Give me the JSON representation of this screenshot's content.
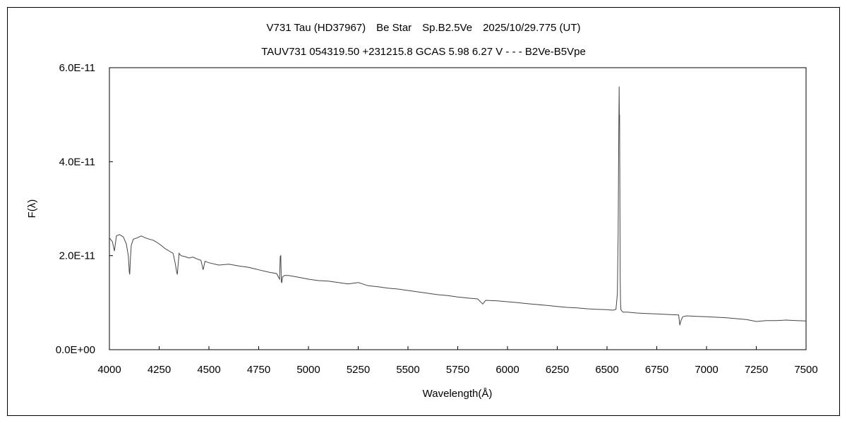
{
  "chart_data": {
    "type": "line",
    "title": "V731 Tau (HD37967)　Be Star　Sp.B2.5Ve　2025/10/29.775 (UT)",
    "subtitle": "TAUV731 054319.50 +231215.8 GCAS 5.98 6.27 V - - - B2Ve-B5Vpe",
    "xlabel": "Wavelength(Å)",
    "ylabel": "F(λ)",
    "xlim": [
      4000,
      7500
    ],
    "ylim": [
      0,
      6e-11
    ],
    "x_ticks": [
      4000,
      4250,
      4500,
      4750,
      5000,
      5250,
      5500,
      5750,
      6000,
      6250,
      6500,
      6750,
      7000,
      7250,
      7500
    ],
    "x_tick_labels": [
      "4000",
      "4250",
      "4500",
      "4750",
      "5000",
      "5250",
      "5500",
      "5750",
      "6000",
      "6250",
      "6500",
      "6750",
      "7000",
      "7250",
      "7500"
    ],
    "y_ticks": [
      0,
      2e-11,
      4e-11,
      6e-11
    ],
    "y_tick_labels": [
      "0.0E+00",
      "2.0E-11",
      "4.0E-11",
      "6.0E-11"
    ],
    "grid": false,
    "series": [
      {
        "x": [
          4000,
          4015,
          4025,
          4035,
          4050,
          4070,
          4085,
          4095,
          4100,
          4102,
          4105,
          4110,
          4120,
          4140,
          4160,
          4180,
          4200,
          4220,
          4240,
          4260,
          4280,
          4300,
          4320,
          4330,
          4338,
          4341,
          4345,
          4350,
          4360,
          4380,
          4400,
          4420,
          4440,
          4460,
          4471,
          4480,
          4500,
          4550,
          4600,
          4650,
          4700,
          4750,
          4800,
          4840,
          4855,
          4858,
          4861,
          4864,
          4866,
          4870,
          4880,
          4900,
          4950,
          5000,
          5050,
          5100,
          5150,
          5200,
          5250,
          5300,
          5350,
          5400,
          5450,
          5500,
          5550,
          5600,
          5650,
          5700,
          5750,
          5800,
          5850,
          5876,
          5890,
          5950,
          6000,
          6050,
          6100,
          6150,
          6200,
          6250,
          6300,
          6350,
          6400,
          6450,
          6500,
          6530,
          6545,
          6552,
          6556,
          6559,
          6561,
          6562,
          6563,
          6564,
          6565,
          6566,
          6568,
          6570,
          6575,
          6580,
          6600,
          6650,
          6700,
          6750,
          6800,
          6860,
          6866,
          6870,
          6880,
          6900,
          6950,
          7000,
          7050,
          7100,
          7150,
          7200,
          7250,
          7300,
          7350,
          7400,
          7450,
          7500
        ],
        "y": [
          2.38e-11,
          2.3e-11,
          2.1e-11,
          2.42e-11,
          2.45e-11,
          2.4e-11,
          2.25e-11,
          2e-11,
          1.65e-11,
          1.6e-11,
          1.9e-11,
          2.22e-11,
          2.35e-11,
          2.38e-11,
          2.42e-11,
          2.38e-11,
          2.35e-11,
          2.33e-11,
          2.28e-11,
          2.22e-11,
          2.15e-11,
          2.1e-11,
          2.05e-11,
          1.85e-11,
          1.65e-11,
          1.6e-11,
          1.8e-11,
          2.05e-11,
          2e-11,
          1.98e-11,
          1.95e-11,
          1.97e-11,
          1.93e-11,
          1.9e-11,
          1.7e-11,
          1.88e-11,
          1.85e-11,
          1.8e-11,
          1.82e-11,
          1.78e-11,
          1.75e-11,
          1.7e-11,
          1.65e-11,
          1.62e-11,
          1.5e-11,
          1.98e-11,
          2e-11,
          1.45e-11,
          1.42e-11,
          1.55e-11,
          1.58e-11,
          1.58e-11,
          1.54e-11,
          1.5e-11,
          1.47e-11,
          1.46e-11,
          1.43e-11,
          1.4e-11,
          1.43e-11,
          1.36e-11,
          1.34e-11,
          1.31e-11,
          1.29e-11,
          1.26e-11,
          1.23e-11,
          1.2e-11,
          1.17e-11,
          1.15e-11,
          1.12e-11,
          1.1e-11,
          1.08e-11,
          9.7e-12,
          1.05e-11,
          1.04e-11,
          1.02e-11,
          1e-11,
          9.8e-12,
          9.6e-12,
          9.4e-12,
          9.2e-12,
          9e-12,
          8.9e-12,
          8.7e-12,
          8.6e-12,
          8.5e-12,
          8.4e-12,
          8.6e-12,
          1.2e-11,
          2.5e-11,
          4.5e-11,
          5.6e-11,
          4.9e-11,
          5e-11,
          4.2e-11,
          3e-11,
          1.6e-11,
          1e-11,
          8.5e-12,
          8.2e-12,
          8e-12,
          8e-12,
          7.8e-12,
          7.7e-12,
          7.6e-12,
          7.5e-12,
          7.4e-12,
          5.2e-12,
          6e-12,
          7e-12,
          7.2e-12,
          7.1e-12,
          7e-12,
          6.9e-12,
          6.8e-12,
          6.6e-12,
          6.4e-12,
          6e-12,
          6.2e-12,
          6.2e-12,
          6.3e-12,
          6.2e-12,
          6.1e-12
        ]
      }
    ]
  }
}
